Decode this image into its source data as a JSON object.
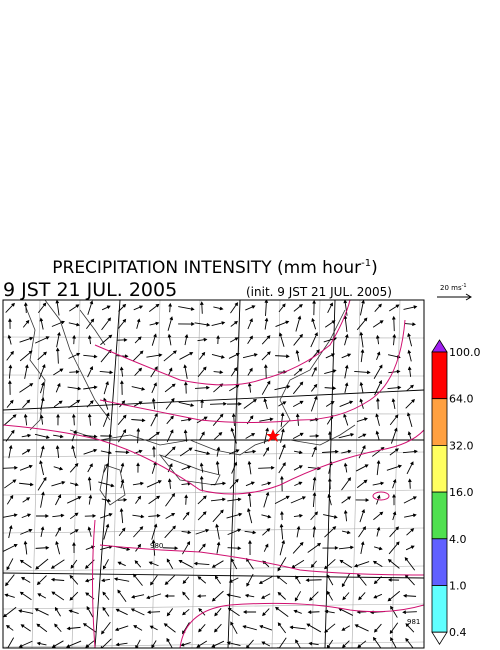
{
  "header": {
    "title": {
      "text": "PRECIPITATION INTENSITY (mm hour",
      "sup": "-1",
      "tail": ")"
    },
    "time": "9 JST 21 JUL. 2005",
    "init": "(init. 9 JST 21 JUL. 2005)"
  },
  "wind_scale": {
    "text": "20 ms",
    "sup": "-1"
  },
  "legend": {
    "over_color": "#a020f0",
    "under_color": "#ffffff",
    "bins": [
      {
        "label": "100.0",
        "color": "#ff0000"
      },
      {
        "label": "64.0",
        "color": "#ffa040"
      },
      {
        "label": "32.0",
        "color": "#ffff60"
      },
      {
        "label": "16.0",
        "color": "#50e050"
      },
      {
        "label": "4.0",
        "color": "#6060ff"
      },
      {
        "label": "1.0",
        "color": "#60ffff"
      },
      {
        "label": "0.4",
        "color": null
      }
    ]
  },
  "map": {
    "contour_labels": [
      "980",
      "981"
    ]
  }
}
